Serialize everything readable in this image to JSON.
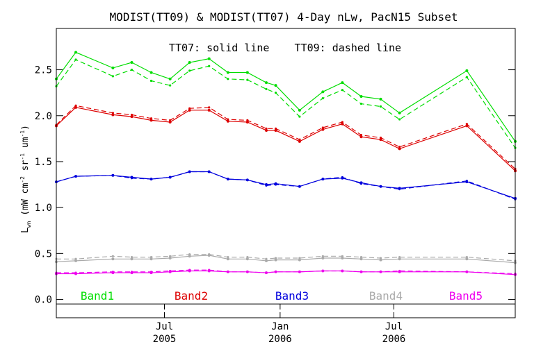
{
  "chart_data": {
    "type": "line",
    "title": "MODIST(TT09) & MODIST(TT07) 4-Day nLw, PacN15 Subset",
    "annotation": "TT07: solid line    TT09: dashed line",
    "ylabel": "L_wn (mW cm^-2 sr^-1 um^-1)",
    "ylabel_parts": {
      "main": "L",
      "sub": "wn",
      "unit": "(mW cm",
      "exp1": "-2",
      "sr": " sr",
      "exp2": "-1",
      "um": " um",
      "exp3": "-1",
      "close": ")"
    },
    "ylim": [
      -0.2,
      2.95
    ],
    "yticks": [
      0.0,
      0.5,
      1.0,
      1.5,
      2.0,
      2.5
    ],
    "ytick_labels": [
      "0.0",
      "0.5",
      "1.0",
      "1.5",
      "2.0",
      "2.5"
    ],
    "xlim": [
      "2005-01-10",
      "2007-01-10"
    ],
    "xticks": [
      {
        "date": "2005-07-01",
        "line1": "Jul",
        "line2": "2005"
      },
      {
        "date": "2006-01-01",
        "line1": "Jan",
        "line2": "2006"
      },
      {
        "date": "2006-07-01",
        "line1": "Jul",
        "line2": "2006"
      }
    ],
    "x": [
      "2005-01-10",
      "2005-02-10",
      "2005-04-10",
      "2005-05-10",
      "2005-06-10",
      "2005-07-10",
      "2005-08-10",
      "2005-09-10",
      "2005-10-10",
      "2005-11-10",
      "2005-12-10",
      "2005-12-25",
      "2006-02-01",
      "2006-03-10",
      "2006-04-10",
      "2006-05-10",
      "2006-06-10",
      "2006-07-10",
      "2006-10-25",
      "2007-01-10"
    ],
    "series": [
      {
        "name": "Band1",
        "color": "#00dd00",
        "solid": [
          2.4,
          2.69,
          2.52,
          2.58,
          2.47,
          2.4,
          2.58,
          2.62,
          2.47,
          2.47,
          2.36,
          2.33,
          2.06,
          2.26,
          2.36,
          2.21,
          2.18,
          2.03,
          2.49,
          1.72
        ],
        "dashed": [
          2.32,
          2.61,
          2.43,
          2.5,
          2.38,
          2.33,
          2.49,
          2.54,
          2.4,
          2.39,
          2.29,
          2.25,
          1.99,
          2.19,
          2.28,
          2.13,
          2.1,
          1.96,
          2.42,
          1.65
        ]
      },
      {
        "name": "Band2",
        "color": "#dd0000",
        "solid": [
          1.89,
          2.09,
          2.01,
          1.99,
          1.95,
          1.93,
          2.06,
          2.06,
          1.94,
          1.93,
          1.84,
          1.84,
          1.72,
          1.85,
          1.91,
          1.77,
          1.74,
          1.64,
          1.89,
          1.4
        ],
        "dashed": [
          1.9,
          2.11,
          2.03,
          2.01,
          1.97,
          1.95,
          2.08,
          2.09,
          1.96,
          1.95,
          1.86,
          1.86,
          1.74,
          1.87,
          1.93,
          1.79,
          1.76,
          1.66,
          1.91,
          1.42
        ]
      },
      {
        "name": "Band3",
        "color": "#0000dd",
        "solid": [
          1.28,
          1.34,
          1.35,
          1.33,
          1.31,
          1.33,
          1.39,
          1.39,
          1.31,
          1.3,
          1.25,
          1.26,
          1.23,
          1.31,
          1.32,
          1.27,
          1.23,
          1.21,
          1.28,
          1.1
        ],
        "dashed": [
          1.28,
          1.34,
          1.35,
          1.32,
          1.31,
          1.33,
          1.39,
          1.39,
          1.31,
          1.3,
          1.24,
          1.25,
          1.23,
          1.31,
          1.33,
          1.26,
          1.23,
          1.2,
          1.29,
          1.09
        ]
      },
      {
        "name": "Band4",
        "color": "#aaaaaa",
        "solid": [
          0.41,
          0.42,
          0.44,
          0.44,
          0.44,
          0.45,
          0.47,
          0.48,
          0.44,
          0.44,
          0.42,
          0.43,
          0.43,
          0.45,
          0.45,
          0.44,
          0.43,
          0.44,
          0.44,
          0.4
        ],
        "dashed": [
          0.44,
          0.44,
          0.47,
          0.46,
          0.46,
          0.47,
          0.49,
          0.49,
          0.46,
          0.46,
          0.44,
          0.45,
          0.45,
          0.47,
          0.47,
          0.46,
          0.45,
          0.46,
          0.46,
          0.42
        ]
      },
      {
        "name": "Band5",
        "color": "#ee00ee",
        "solid": [
          0.28,
          0.28,
          0.29,
          0.29,
          0.29,
          0.3,
          0.31,
          0.31,
          0.3,
          0.3,
          0.29,
          0.3,
          0.3,
          0.31,
          0.31,
          0.3,
          0.3,
          0.3,
          0.3,
          0.27
        ],
        "dashed": [
          0.29,
          0.29,
          0.3,
          0.3,
          0.3,
          0.31,
          0.32,
          0.32,
          0.3,
          0.3,
          0.29,
          0.3,
          0.3,
          0.31,
          0.31,
          0.3,
          0.3,
          0.31,
          0.3,
          0.28
        ]
      }
    ]
  }
}
